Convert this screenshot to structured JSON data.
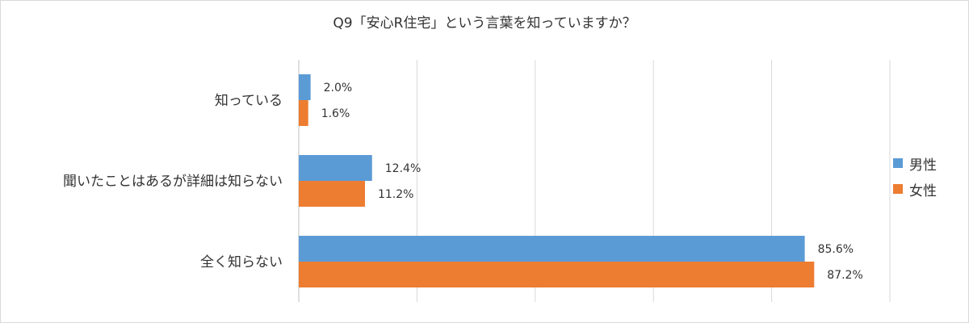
{
  "chart_data": {
    "type": "bar",
    "orientation": "horizontal",
    "title": "Q9「安心R住宅」という言葉を知っていますか？",
    "categories": [
      "知っている",
      "聞いたことはあるが詳細は知らない",
      "全く知らない"
    ],
    "series": [
      {
        "name": "男性",
        "values": [
          2.0,
          12.4,
          85.6
        ],
        "labels": [
          "2.0%",
          "12.4%",
          "85.6%"
        ],
        "color": "#5b9bd5"
      },
      {
        "name": "女性",
        "values": [
          1.6,
          11.2,
          87.2
        ],
        "labels": [
          "1.6%",
          "11.2%",
          "87.2%"
        ],
        "color": "#ed7d31"
      }
    ],
    "xlim": [
      0,
      100
    ],
    "grid": true,
    "legend_position": "right"
  }
}
